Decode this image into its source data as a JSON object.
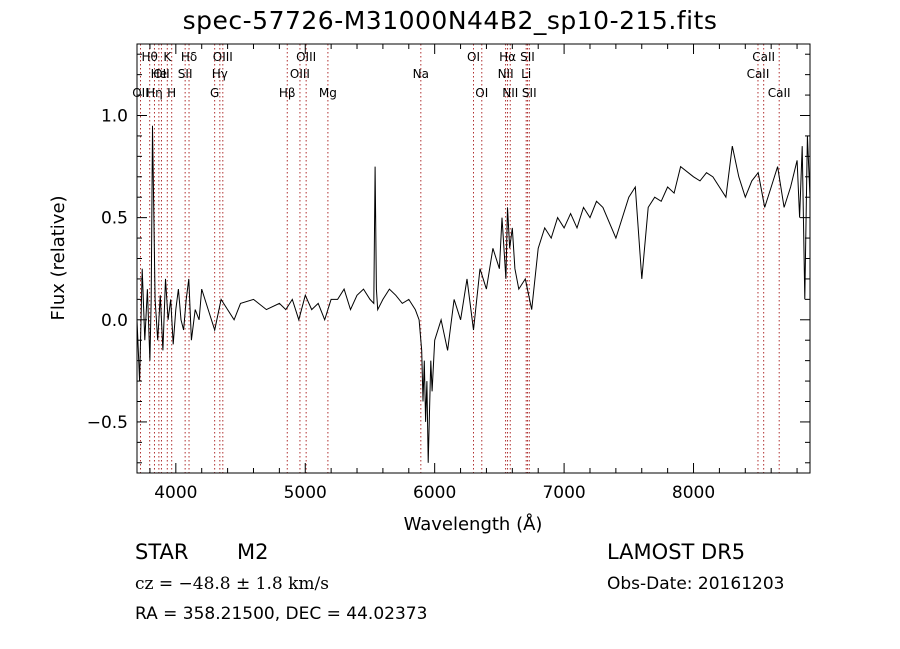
{
  "chart_data": {
    "type": "line",
    "title": "spec-57726-M31000N44B2_sp10-215.fits",
    "xlabel": "Wavelength (Å)",
    "ylabel": "Flux (relative)",
    "xlim": [
      3700,
      8900
    ],
    "ylim": [
      -0.75,
      1.35
    ],
    "x_ticks": [
      4000,
      5000,
      6000,
      7000,
      8000
    ],
    "x_tick_labels": [
      "4000",
      "5000",
      "6000",
      "7000",
      "8000"
    ],
    "y_ticks": [
      -0.5,
      0.0,
      0.5,
      1.0
    ],
    "y_tick_labels": [
      "−0.5",
      "0.0",
      "0.5",
      "1.0"
    ],
    "grid": false,
    "series": [
      {
        "color": "#000000",
        "x": [
          3700,
          3720,
          3740,
          3760,
          3780,
          3800,
          3810,
          3820,
          3840,
          3860,
          3880,
          3900,
          3920,
          3940,
          3960,
          3980,
          4000,
          4020,
          4040,
          4060,
          4080,
          4100,
          4120,
          4150,
          4180,
          4200,
          4250,
          4300,
          4350,
          4400,
          4450,
          4500,
          4600,
          4700,
          4800,
          4850,
          4900,
          4950,
          5000,
          5050,
          5100,
          5150,
          5200,
          5250,
          5300,
          5350,
          5400,
          5450,
          5500,
          5530,
          5540,
          5550,
          5560,
          5600,
          5650,
          5700,
          5750,
          5800,
          5850,
          5880,
          5900,
          5910,
          5920,
          5930,
          5940,
          5950,
          5960,
          5970,
          5980,
          6000,
          6050,
          6100,
          6150,
          6200,
          6250,
          6300,
          6350,
          6400,
          6450,
          6500,
          6520,
          6550,
          6563,
          6580,
          6600,
          6620,
          6650,
          6700,
          6750,
          6800,
          6850,
          6900,
          6950,
          7000,
          7050,
          7100,
          7150,
          7200,
          7250,
          7300,
          7400,
          7500,
          7550,
          7600,
          7650,
          7700,
          7750,
          7800,
          7850,
          7900,
          8000,
          8050,
          8100,
          8150,
          8200,
          8250,
          8300,
          8350,
          8400,
          8450,
          8500,
          8550,
          8600,
          8650,
          8700,
          8750,
          8800,
          8820,
          8840,
          8860,
          8880,
          8900
        ],
        "y": [
          0.0,
          -0.3,
          0.25,
          -0.1,
          0.15,
          -0.2,
          0.1,
          0.95,
          0.1,
          -0.1,
          0.12,
          -0.15,
          0.2,
          0.0,
          0.1,
          -0.12,
          0.05,
          0.15,
          0.0,
          -0.05,
          0.1,
          0.2,
          -0.1,
          0.05,
          0.0,
          0.15,
          0.05,
          -0.05,
          0.1,
          0.05,
          0.0,
          0.08,
          0.1,
          0.05,
          0.08,
          0.05,
          0.1,
          0.0,
          0.12,
          0.05,
          0.08,
          0.0,
          0.1,
          0.1,
          0.15,
          0.05,
          0.12,
          0.15,
          0.1,
          0.08,
          0.75,
          0.15,
          0.05,
          0.1,
          0.15,
          0.12,
          0.08,
          0.1,
          0.05,
          0.0,
          -0.15,
          -0.4,
          -0.2,
          -0.5,
          -0.3,
          -0.7,
          -0.45,
          -0.2,
          -0.35,
          -0.1,
          0.0,
          -0.15,
          0.1,
          0.0,
          0.2,
          -0.05,
          0.25,
          0.15,
          0.35,
          0.25,
          0.5,
          0.2,
          0.55,
          0.35,
          0.45,
          0.25,
          0.15,
          0.2,
          0.05,
          0.35,
          0.45,
          0.4,
          0.5,
          0.45,
          0.52,
          0.45,
          0.55,
          0.5,
          0.58,
          0.55,
          0.4,
          0.6,
          0.65,
          0.2,
          0.55,
          0.6,
          0.58,
          0.65,
          0.62,
          0.75,
          0.7,
          0.68,
          0.72,
          0.7,
          0.65,
          0.6,
          0.85,
          0.7,
          0.6,
          0.68,
          0.72,
          0.55,
          0.65,
          0.75,
          0.55,
          0.65,
          0.78,
          0.5,
          0.85,
          0.1,
          0.9,
          0.6
        ]
      }
    ],
    "line_markers": [
      {
        "x": 3727,
        "label": "OII",
        "row": 3
      },
      {
        "x": 3798,
        "label": "Hθ",
        "row": 1
      },
      {
        "x": 3835,
        "label": "Hη",
        "row": 3
      },
      {
        "x": 3869,
        "label": "He",
        "row": 2
      },
      {
        "x": 3889,
        "label": "OII",
        "row": 2
      },
      {
        "x": 3934,
        "label": "K",
        "row": 1
      },
      {
        "x": 3968,
        "label": "H",
        "row": 3
      },
      {
        "x": 4072,
        "label": "SII",
        "row": 2
      },
      {
        "x": 4102,
        "label": "Hδ",
        "row": 1
      },
      {
        "x": 4300,
        "label": "G",
        "row": 3
      },
      {
        "x": 4340,
        "label": "Hγ",
        "row": 2
      },
      {
        "x": 4363,
        "label": "OIII",
        "row": 1
      },
      {
        "x": 4861,
        "label": "Hβ",
        "row": 3
      },
      {
        "x": 4959,
        "label": "OIII",
        "row": 2
      },
      {
        "x": 5007,
        "label": "OIII",
        "row": 1
      },
      {
        "x": 5175,
        "label": "Mg",
        "row": 3
      },
      {
        "x": 5893,
        "label": "Na",
        "row": 2
      },
      {
        "x": 6300,
        "label": "OI",
        "row": 1
      },
      {
        "x": 6364,
        "label": "OI",
        "row": 3
      },
      {
        "x": 6548,
        "label": "NII",
        "row": 2
      },
      {
        "x": 6563,
        "label": "Hα",
        "row": 1
      },
      {
        "x": 6584,
        "label": "NII",
        "row": 3
      },
      {
        "x": 6707,
        "label": "Li",
        "row": 2
      },
      {
        "x": 6717,
        "label": "SII",
        "row": 1
      },
      {
        "x": 6731,
        "label": "SII",
        "row": 3
      },
      {
        "x": 8498,
        "label": "CaII",
        "row": 2
      },
      {
        "x": 8542,
        "label": "CaII",
        "row": 1
      },
      {
        "x": 8662,
        "label": "CaII",
        "row": 3
      }
    ],
    "marker_color": "#b03030"
  },
  "footer": {
    "object_class": "STAR",
    "subclass": "M2",
    "survey": "LAMOST DR5",
    "cz": "cz = −48.8 ± 1.8 km/s",
    "obs_date": "Obs-Date: 20161203",
    "coords": "RA = 358.21500, DEC =  44.02373"
  }
}
